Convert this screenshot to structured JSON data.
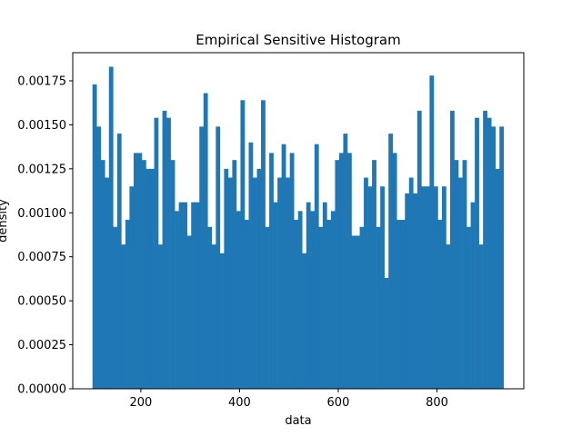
{
  "chart_data": {
    "type": "bar",
    "title": "Empirical Sensitive Histogram",
    "xlabel": "data",
    "ylabel": "density",
    "xlim": [
      62,
      976
    ],
    "ylim": [
      0,
      0.00191
    ],
    "x_ticks": [
      200,
      400,
      600,
      800
    ],
    "x_tick_labels": [
      "200",
      "400",
      "600",
      "800"
    ],
    "y_ticks": [
      0,
      0.00025,
      0.0005,
      0.00075,
      0.001,
      0.00125,
      0.0015,
      0.00175
    ],
    "y_tick_labels": [
      "0.00000",
      "0.00025",
      "0.00050",
      "0.00075",
      "0.00100",
      "0.00125",
      "0.00150",
      "0.00175"
    ],
    "bins_start": 102,
    "bins_end": 935,
    "bar_color": "#1f77b4",
    "grid": false,
    "values": [
      0.00173,
      0.00149,
      0.0013,
      0.0012,
      0.00183,
      0.00092,
      0.00145,
      0.00082,
      0.00096,
      0.00115,
      0.00134,
      0.00134,
      0.0013,
      0.00125,
      0.00125,
      0.00154,
      0.00082,
      0.00158,
      0.00154,
      0.0013,
      0.00101,
      0.00106,
      0.00106,
      0.00087,
      0.00106,
      0.00106,
      0.00149,
      0.00168,
      0.00092,
      0.00082,
      0.00149,
      0.00077,
      0.00125,
      0.0012,
      0.0013,
      0.00101,
      0.00164,
      0.00096,
      0.0014,
      0.0012,
      0.00125,
      0.00164,
      0.00092,
      0.00134,
      0.00106,
      0.0012,
      0.00139,
      0.0012,
      0.00134,
      0.00096,
      0.00101,
      0.00077,
      0.00106,
      0.00101,
      0.00139,
      0.00092,
      0.00106,
      0.00096,
      0.00101,
      0.0013,
      0.00134,
      0.00145,
      0.00134,
      0.00087,
      0.00087,
      0.00092,
      0.0012,
      0.00115,
      0.0013,
      0.00092,
      0.00115,
      0.00063,
      0.00145,
      0.00134,
      0.00096,
      0.00096,
      0.00111,
      0.0012,
      0.00111,
      0.00158,
      0.00115,
      0.00115,
      0.00178,
      0.00115,
      0.00096,
      0.00115,
      0.00082,
      0.00158,
      0.0013,
      0.0012,
      0.0013,
      0.00092,
      0.00106,
      0.00154,
      0.00082,
      0.00158,
      0.00154,
      0.00149,
      0.00125,
      0.00149
    ]
  }
}
